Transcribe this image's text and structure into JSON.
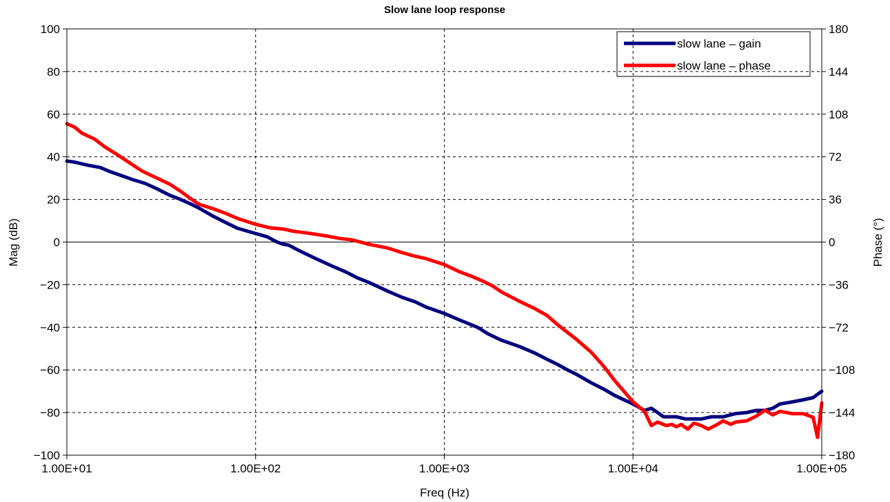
{
  "chart_data": {
    "type": "line",
    "title": "Slow lane loop response",
    "xlabel": "Freq (Hz)",
    "ylabel": "Mag (dB)",
    "y2label": "Phase (°)",
    "x_scale": "log",
    "xlim": [
      10,
      100000
    ],
    "ylim": [
      -100,
      100
    ],
    "y2lim": [
      -180,
      180
    ],
    "x_ticks": [
      "1.00E+01",
      "1.00E+02",
      "1.00E+03",
      "1.00E+04",
      "1.00E+05"
    ],
    "y_ticks": [
      "100",
      "80",
      "60",
      "40",
      "20",
      "0",
      "−20",
      "−40",
      "−60",
      "−80",
      "−100"
    ],
    "y2_ticks": [
      "180",
      "144",
      "108",
      "72",
      "36",
      "0",
      "−36",
      "−72",
      "−108",
      "−144",
      "−180"
    ],
    "grid": true,
    "legend_position": "top-right",
    "colors": {
      "gain": "#00007f",
      "phase": "#ff0000"
    },
    "series": [
      {
        "name": "slow lane – gain",
        "axis": "left",
        "x": [
          10,
          11,
          13,
          15,
          17,
          19,
          22,
          26,
          30,
          35,
          40,
          45,
          50,
          60,
          70,
          80,
          100,
          115,
          130,
          140,
          150,
          170,
          200,
          250,
          300,
          350,
          400,
          500,
          600,
          700,
          800,
          1000,
          1200,
          1500,
          1700,
          2000,
          2500,
          3000,
          3500,
          4000,
          4500,
          5000,
          6000,
          7000,
          8000,
          10000,
          11500,
          12500,
          13500,
          14500,
          15000,
          17000,
          19000,
          21000,
          23000,
          26000,
          30000,
          35000,
          40000,
          45000,
          50000,
          55000,
          60000,
          70000,
          80000,
          90000,
          100000
        ],
        "values": [
          38,
          37.5,
          36,
          35,
          33,
          31.5,
          29.5,
          27.5,
          25,
          22,
          20,
          18,
          16,
          12,
          9,
          6.5,
          4,
          2.5,
          0,
          -1,
          -1.5,
          -4,
          -7,
          -11,
          -14,
          -17,
          -19,
          -23,
          -26,
          -28,
          -30.5,
          -33.5,
          -36.5,
          -40,
          -43,
          -46,
          -49,
          -52,
          -55,
          -57.5,
          -60,
          -62,
          -66,
          -69,
          -72,
          -76,
          -79,
          -78,
          -80,
          -82,
          -82,
          -82,
          -83,
          -83,
          -83,
          -82,
          -82,
          -80.5,
          -80,
          -79,
          -79,
          -78,
          -76,
          -75,
          -74,
          -73,
          -70
        ]
      },
      {
        "name": "slow lane – phase",
        "axis": "right",
        "x": [
          10,
          11,
          12,
          14,
          16,
          18,
          21,
          25,
          30,
          35,
          40,
          45,
          50,
          60,
          70,
          80,
          100,
          120,
          140,
          160,
          180,
          200,
          240,
          280,
          320,
          360,
          400,
          500,
          600,
          700,
          800,
          1000,
          1200,
          1400,
          1600,
          1800,
          2000,
          2500,
          3000,
          3500,
          4000,
          5000,
          6000,
          7000,
          8000,
          10000,
          11500,
          12500,
          13500,
          15000,
          16000,
          17000,
          18000,
          19500,
          21000,
          23000,
          25000,
          28000,
          30000,
          33000,
          35000,
          40000,
          45000,
          50000,
          55000,
          60000,
          65000,
          70000,
          80000,
          90000,
          95000,
          100000
        ],
        "values": [
          100,
          97,
          92,
          87,
          80,
          75,
          68,
          60,
          54,
          49,
          43,
          37,
          32,
          28,
          24,
          20,
          15,
          12,
          11,
          9,
          8,
          7,
          5,
          3,
          2,
          0,
          -2,
          -5,
          -9,
          -12,
          -14,
          -19,
          -25,
          -29,
          -33,
          -37,
          -42,
          -50,
          -56,
          -62,
          -70,
          -82,
          -93,
          -105,
          -117,
          -135,
          -143,
          -155,
          -152,
          -155,
          -154,
          -156,
          -154,
          -158,
          -153,
          -155,
          -158,
          -154,
          -151,
          -154,
          -152,
          -151,
          -147,
          -142,
          -146,
          -143,
          -144,
          -145,
          -145,
          -148,
          -165,
          -136
        ]
      }
    ]
  }
}
